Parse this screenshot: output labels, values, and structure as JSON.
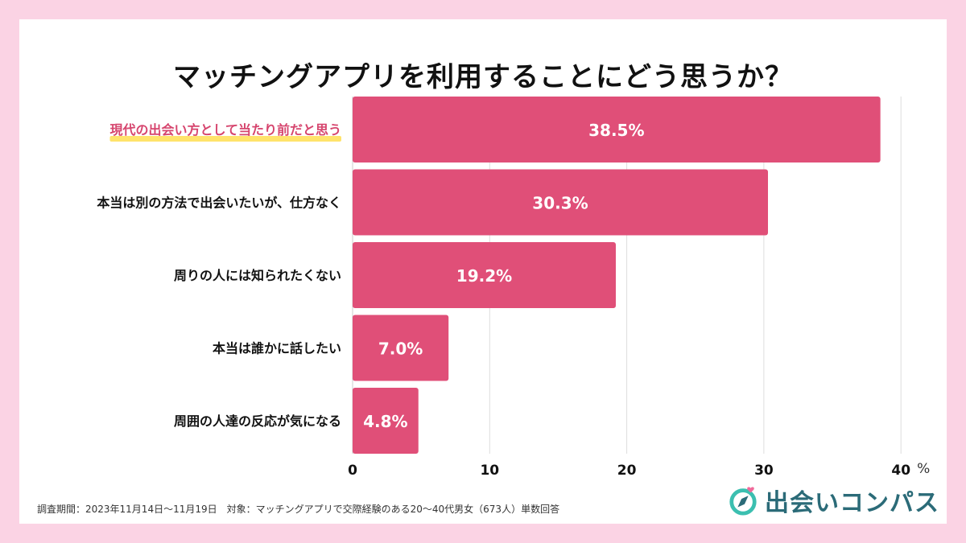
{
  "title": "マッチングアプリを利用することにどう思うか？",
  "footnote": "調査期間：2023年11月14日〜11月19日　対象：マッチングアプリで交際経験のある20〜40代男女（673人）単数回答",
  "brand": {
    "name": "出会いコンパス",
    "icon": "compass-heart-icon"
  },
  "colors": {
    "bar": "#e04f78",
    "highlight_text": "#d6456e",
    "highlight_underline": "#ffe36b",
    "grid": "#dddddd",
    "background": "#fbd3e4"
  },
  "chart_data": {
    "type": "bar",
    "orientation": "horizontal",
    "categories": [
      "現代の出会い方として当たり前だと思う",
      "本当は別の方法で出会いたいが、仕方なく",
      "周りの人には知られたくない",
      "本当は誰かに話したい",
      "周囲の人達の反応が気になる"
    ],
    "values": [
      38.5,
      30.3,
      19.2,
      7.0,
      4.8
    ],
    "value_labels": [
      "38.5%",
      "30.3%",
      "19.2%",
      "7.0%",
      "4.8%"
    ],
    "highlight_index": 0,
    "xlim": [
      0,
      40
    ],
    "xticks": [
      0,
      10,
      20,
      30,
      40
    ],
    "xunit": "%",
    "grid": true
  }
}
